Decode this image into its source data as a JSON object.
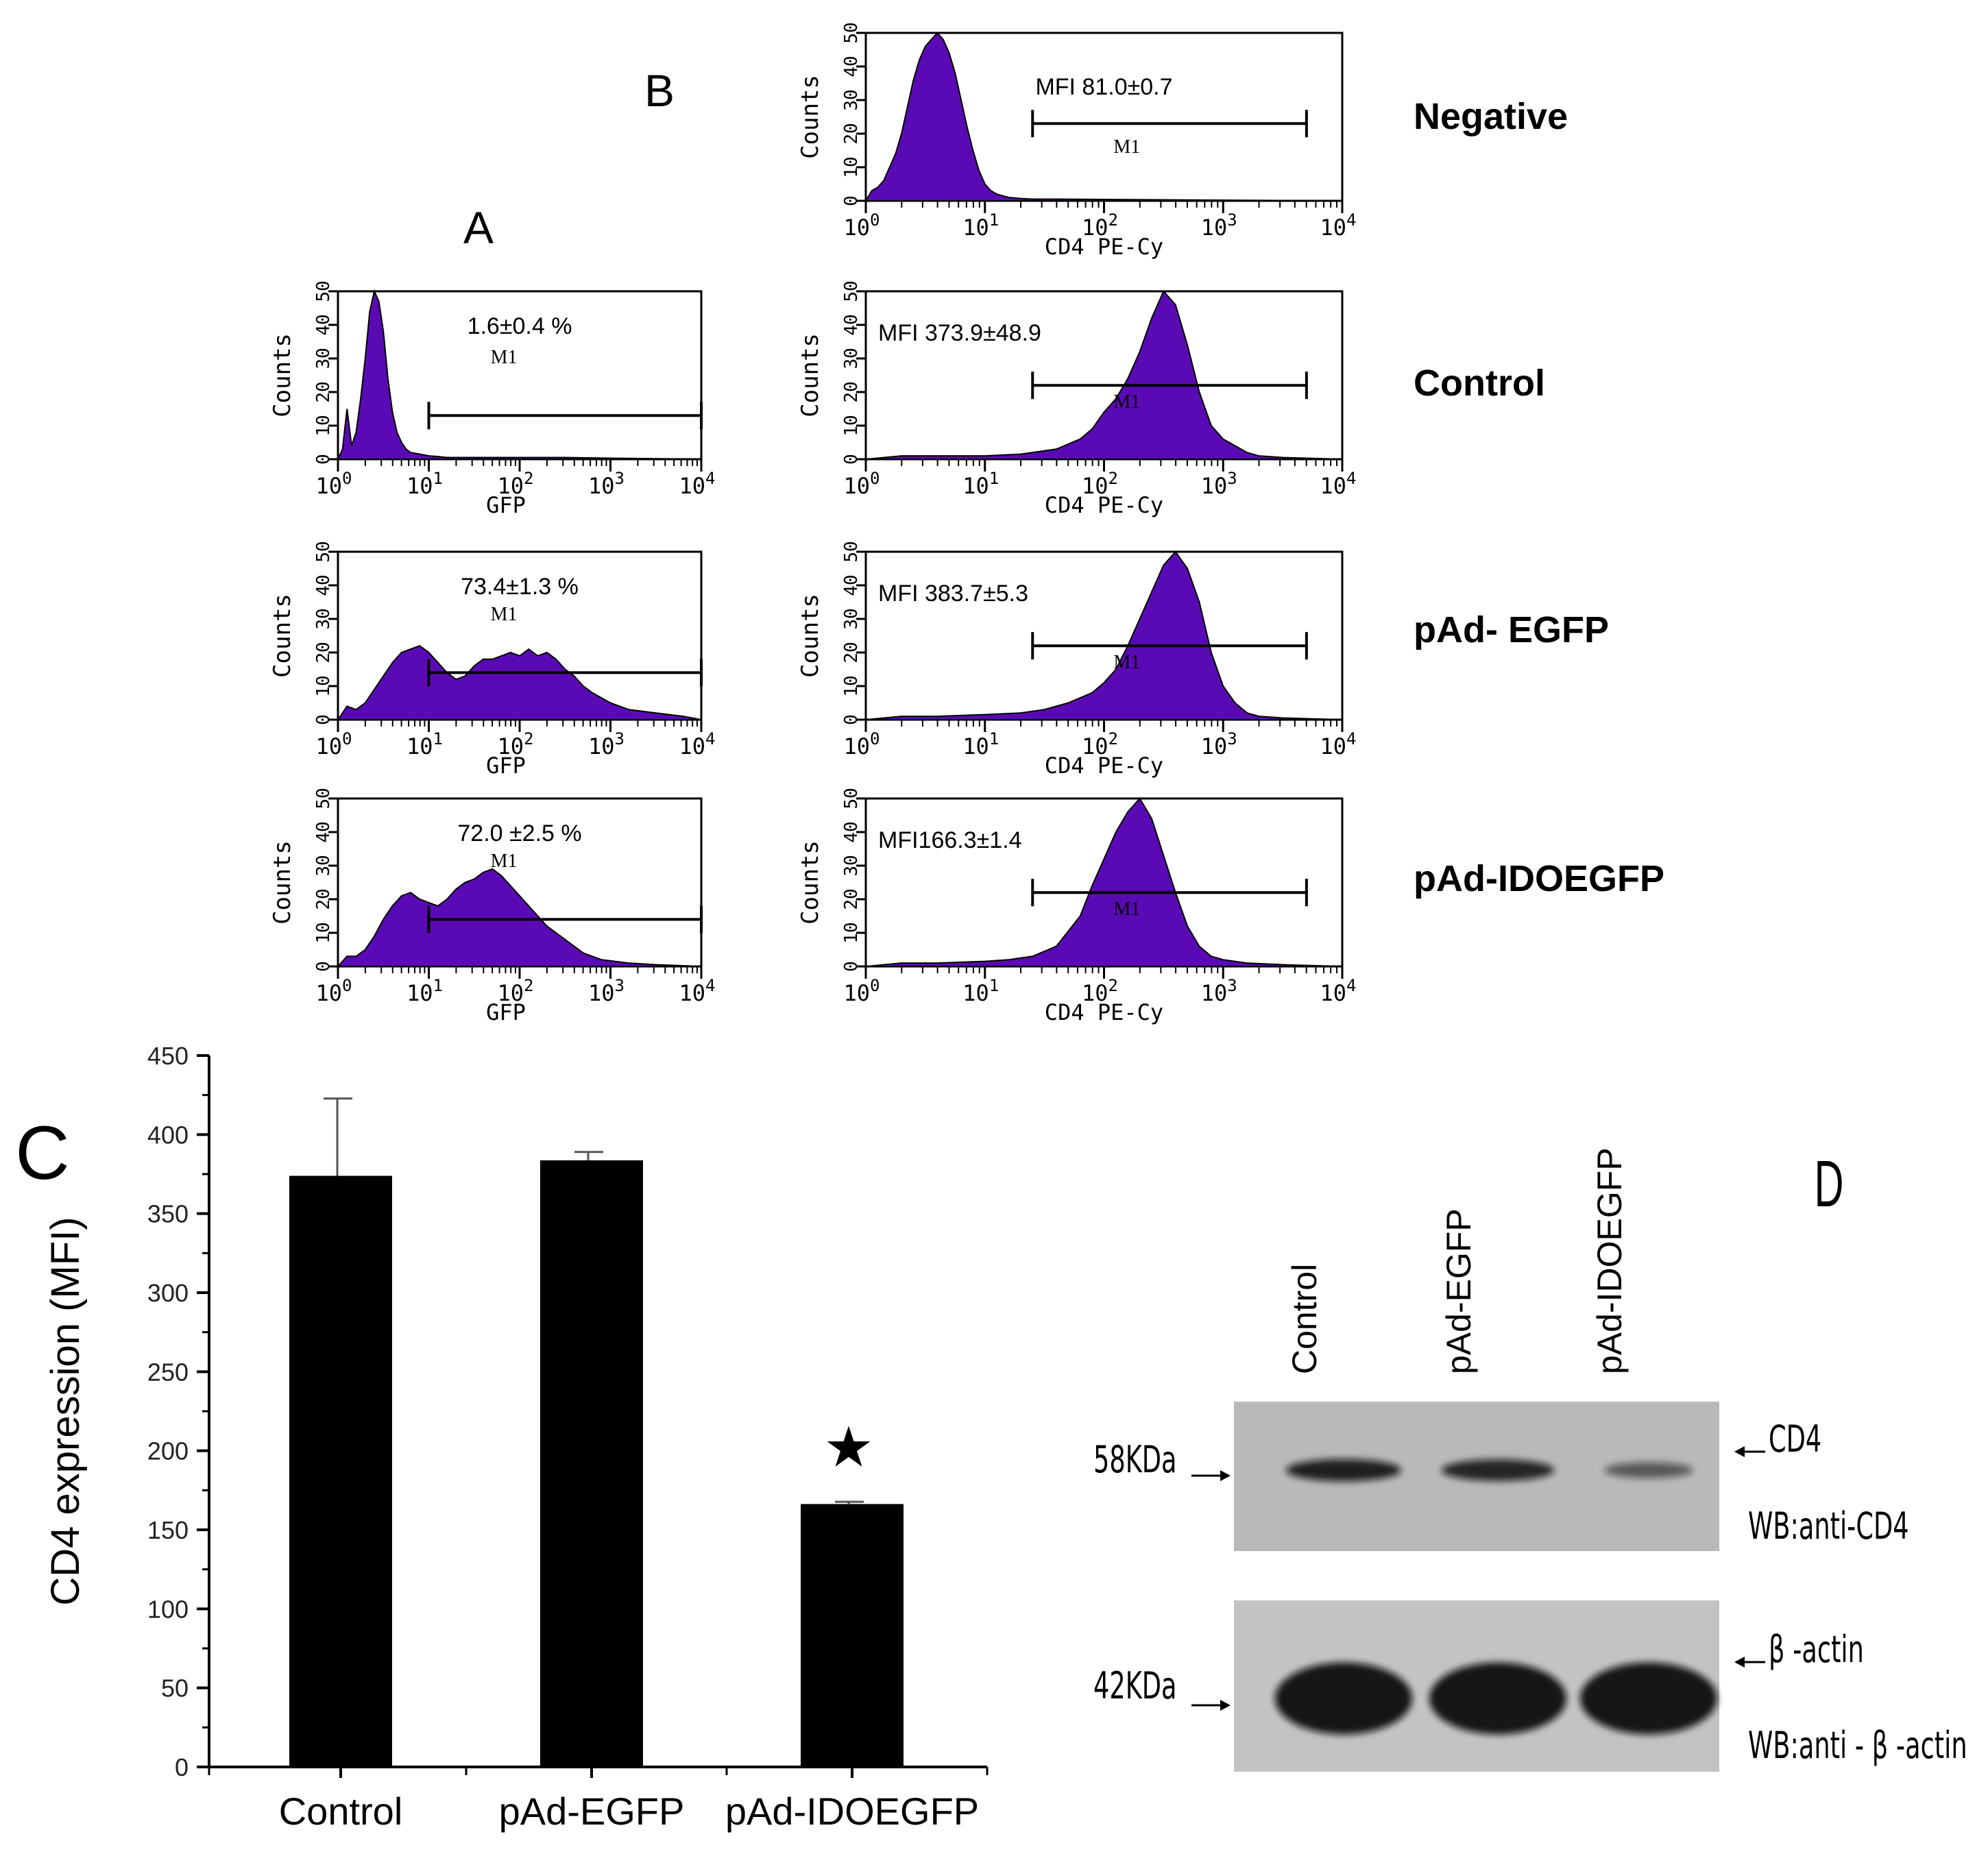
{
  "panels": {
    "A": "A",
    "B": "B",
    "C": "C",
    "D": "D"
  },
  "colors": {
    "histogram_fill": "#5a0ab4",
    "axis": "#000000",
    "bar": "#000000",
    "blot_bg": "#c8c8c8",
    "band": "#111111"
  },
  "row_labels": [
    "Negative",
    "Control",
    "pAd- EGFP",
    "pAd-IDOEGFP"
  ],
  "histogram_axis": {
    "y_label": "Counts",
    "y_ticks": [
      "0",
      "10",
      "20",
      "30",
      "40",
      "50"
    ],
    "x_ticks_base": "10",
    "x_ticks_exp": [
      "0",
      "1",
      "2",
      "3",
      "4"
    ],
    "gate_label": "M1",
    "gfp_xlabel": "GFP",
    "cd4_xlabel": "CD4 PE-Cy"
  },
  "gfp_histograms": [
    {
      "row": 1,
      "annotation": "1.6±0.4 %",
      "gate": [
        1.0,
        4.0
      ]
    },
    {
      "row": 2,
      "annotation": "73.4±1.3 %",
      "gate": [
        1.0,
        4.0
      ]
    },
    {
      "row": 3,
      "annotation": "72.0 ±2.5 %",
      "gate": [
        1.0,
        4.0
      ]
    }
  ],
  "cd4_histograms": [
    {
      "row": 0,
      "annotation": "MFI 81.0±0.7",
      "gate": [
        1.4,
        3.7
      ]
    },
    {
      "row": 1,
      "annotation": "MFI 373.9±48.9",
      "gate": [
        1.4,
        3.7
      ]
    },
    {
      "row": 2,
      "annotation": "MFI 383.7±5.3",
      "gate": [
        1.4,
        3.7
      ]
    },
    {
      "row": 3,
      "annotation": "MFI166.3±1.4",
      "gate": [
        1.4,
        3.7
      ]
    }
  ],
  "chart_data": [
    {
      "type": "area",
      "panel": "A",
      "xlabel": "GFP",
      "ylabel": "Counts",
      "x_scale": "log10",
      "xlim_log10": [
        0,
        4
      ],
      "ylim": [
        0,
        50
      ],
      "series": [
        {
          "name": "Control",
          "x_log10": [
            0,
            0.05,
            0.1,
            0.15,
            0.2,
            0.25,
            0.3,
            0.35,
            0.4,
            0.45,
            0.5,
            0.55,
            0.6,
            0.65,
            0.7,
            0.75,
            0.8,
            0.9,
            1.0,
            1.1,
            1.2,
            1.4,
            1.6,
            2.0,
            2.5,
            3.0,
            4.0
          ],
          "y": [
            0,
            3,
            15,
            4,
            8,
            18,
            30,
            44,
            50,
            47,
            38,
            24,
            14,
            8,
            5,
            3,
            2,
            1.5,
            1,
            0.8,
            0.5,
            0.5,
            0.5,
            0.5,
            0.5,
            0.3,
            0
          ]
        },
        {
          "name": "pAd- EGFP",
          "x_log10": [
            0,
            0.1,
            0.2,
            0.3,
            0.4,
            0.5,
            0.6,
            0.7,
            0.8,
            0.9,
            1.0,
            1.1,
            1.2,
            1.3,
            1.4,
            1.5,
            1.6,
            1.7,
            1.8,
            1.9,
            2.0,
            2.1,
            2.2,
            2.3,
            2.4,
            2.5,
            2.6,
            2.7,
            2.8,
            3.0,
            3.2,
            3.5,
            3.8,
            4.0
          ],
          "y": [
            0,
            4,
            3,
            5,
            9,
            13,
            17,
            20,
            21,
            22,
            20,
            17,
            14,
            12,
            13,
            16,
            18,
            18,
            19,
            20,
            19,
            21,
            19,
            20,
            18,
            15,
            13,
            10,
            8,
            5,
            3,
            2,
            1,
            0
          ]
        },
        {
          "name": "pAd-IDOEGFP",
          "x_log10": [
            0,
            0.1,
            0.2,
            0.3,
            0.4,
            0.5,
            0.6,
            0.7,
            0.8,
            0.9,
            1.0,
            1.1,
            1.2,
            1.3,
            1.4,
            1.5,
            1.6,
            1.7,
            1.8,
            1.9,
            2.0,
            2.1,
            2.2,
            2.3,
            2.5,
            2.7,
            2.9,
            3.2,
            3.5,
            4.0
          ],
          "y": [
            0,
            3,
            3,
            5,
            9,
            14,
            18,
            21,
            22,
            20,
            19,
            18,
            20,
            23,
            25,
            26,
            28,
            29,
            27,
            24,
            21,
            18,
            15,
            12,
            8,
            4,
            2,
            1,
            0.5,
            0
          ]
        }
      ]
    },
    {
      "type": "area",
      "panel": "B",
      "xlabel": "CD4 PE-Cy",
      "ylabel": "Counts",
      "x_scale": "log10",
      "xlim_log10": [
        0,
        4
      ],
      "ylim": [
        0,
        50
      ],
      "series": [
        {
          "name": "Negative",
          "x_log10": [
            0,
            0.05,
            0.1,
            0.15,
            0.2,
            0.25,
            0.3,
            0.35,
            0.4,
            0.45,
            0.5,
            0.55,
            0.6,
            0.65,
            0.7,
            0.75,
            0.8,
            0.85,
            0.9,
            0.95,
            1.0,
            1.05,
            1.1,
            1.15,
            1.2,
            1.3,
            1.4,
            1.6,
            2.0,
            2.5,
            3.0,
            4.0
          ],
          "y": [
            0,
            3,
            4,
            6,
            10,
            14,
            20,
            28,
            36,
            42,
            46,
            48,
            50,
            48,
            44,
            38,
            30,
            22,
            15,
            9,
            5,
            3,
            2,
            1.5,
            1,
            0.7,
            0.5,
            0.5,
            0.4,
            0.3,
            0.2,
            0
          ]
        },
        {
          "name": "Control",
          "x_log10": [
            0,
            0.3,
            0.6,
            1.0,
            1.3,
            1.6,
            1.8,
            1.9,
            2.0,
            2.1,
            2.2,
            2.3,
            2.4,
            2.5,
            2.6,
            2.7,
            2.8,
            2.9,
            3.0,
            3.1,
            3.2,
            3.3,
            3.5,
            4.0
          ],
          "y": [
            0,
            1,
            1,
            1,
            1.5,
            3,
            6,
            9,
            14,
            18,
            24,
            32,
            42,
            50,
            46,
            34,
            20,
            10,
            6,
            4,
            2,
            1,
            0.5,
            0
          ]
        },
        {
          "name": "pAd- EGFP",
          "x_log10": [
            0,
            0.3,
            0.6,
            1.0,
            1.3,
            1.5,
            1.7,
            1.9,
            2.0,
            2.1,
            2.2,
            2.3,
            2.4,
            2.5,
            2.6,
            2.7,
            2.8,
            2.9,
            3.0,
            3.1,
            3.2,
            3.3,
            3.5,
            4.0
          ],
          "y": [
            0,
            1,
            1,
            1.5,
            2,
            3,
            5,
            8,
            11,
            15,
            22,
            30,
            38,
            46,
            50,
            45,
            35,
            20,
            10,
            5,
            2,
            1,
            0.5,
            0
          ]
        },
        {
          "name": "pAd-IDOEGFP",
          "x_log10": [
            0,
            0.3,
            0.6,
            1.0,
            1.2,
            1.4,
            1.6,
            1.8,
            1.9,
            2.0,
            2.1,
            2.2,
            2.3,
            2.4,
            2.5,
            2.6,
            2.7,
            2.8,
            2.9,
            3.0,
            3.2,
            3.5,
            4.0
          ],
          "y": [
            0,
            1,
            1,
            1.5,
            2,
            3,
            6,
            15,
            24,
            32,
            40,
            46,
            50,
            44,
            33,
            22,
            12,
            6,
            3,
            2,
            1,
            0.5,
            0
          ]
        }
      ]
    },
    {
      "type": "bar",
      "panel": "C",
      "categories": [
        "Control",
        "pAd-EGFP",
        "pAd-IDOEGFP"
      ],
      "values": [
        373.9,
        383.7,
        166.3
      ],
      "errors": [
        48.9,
        5.3,
        1.4
      ],
      "ylabel": "CD4 expression (MFI)",
      "ylim": [
        0,
        450
      ],
      "yticks": [
        "0",
        "50",
        "100",
        "150",
        "200",
        "250",
        "300",
        "350",
        "400",
        "450"
      ],
      "significance_marker": "★",
      "significance_index": 2
    }
  ],
  "western_blot": {
    "lanes": [
      "Control",
      "pAd-EGFP",
      "pAd-IDOEGFP"
    ],
    "top": {
      "marker": "58KDa",
      "target": "CD4",
      "wb_label": "WB:anti-CD4",
      "band_intensity": [
        0.9,
        0.85,
        0.35
      ]
    },
    "bottom": {
      "marker": "42KDa",
      "target": "β -actin",
      "wb_label": "WB:anti - β -actin",
      "band_intensity": [
        1.0,
        1.0,
        1.0
      ]
    }
  }
}
